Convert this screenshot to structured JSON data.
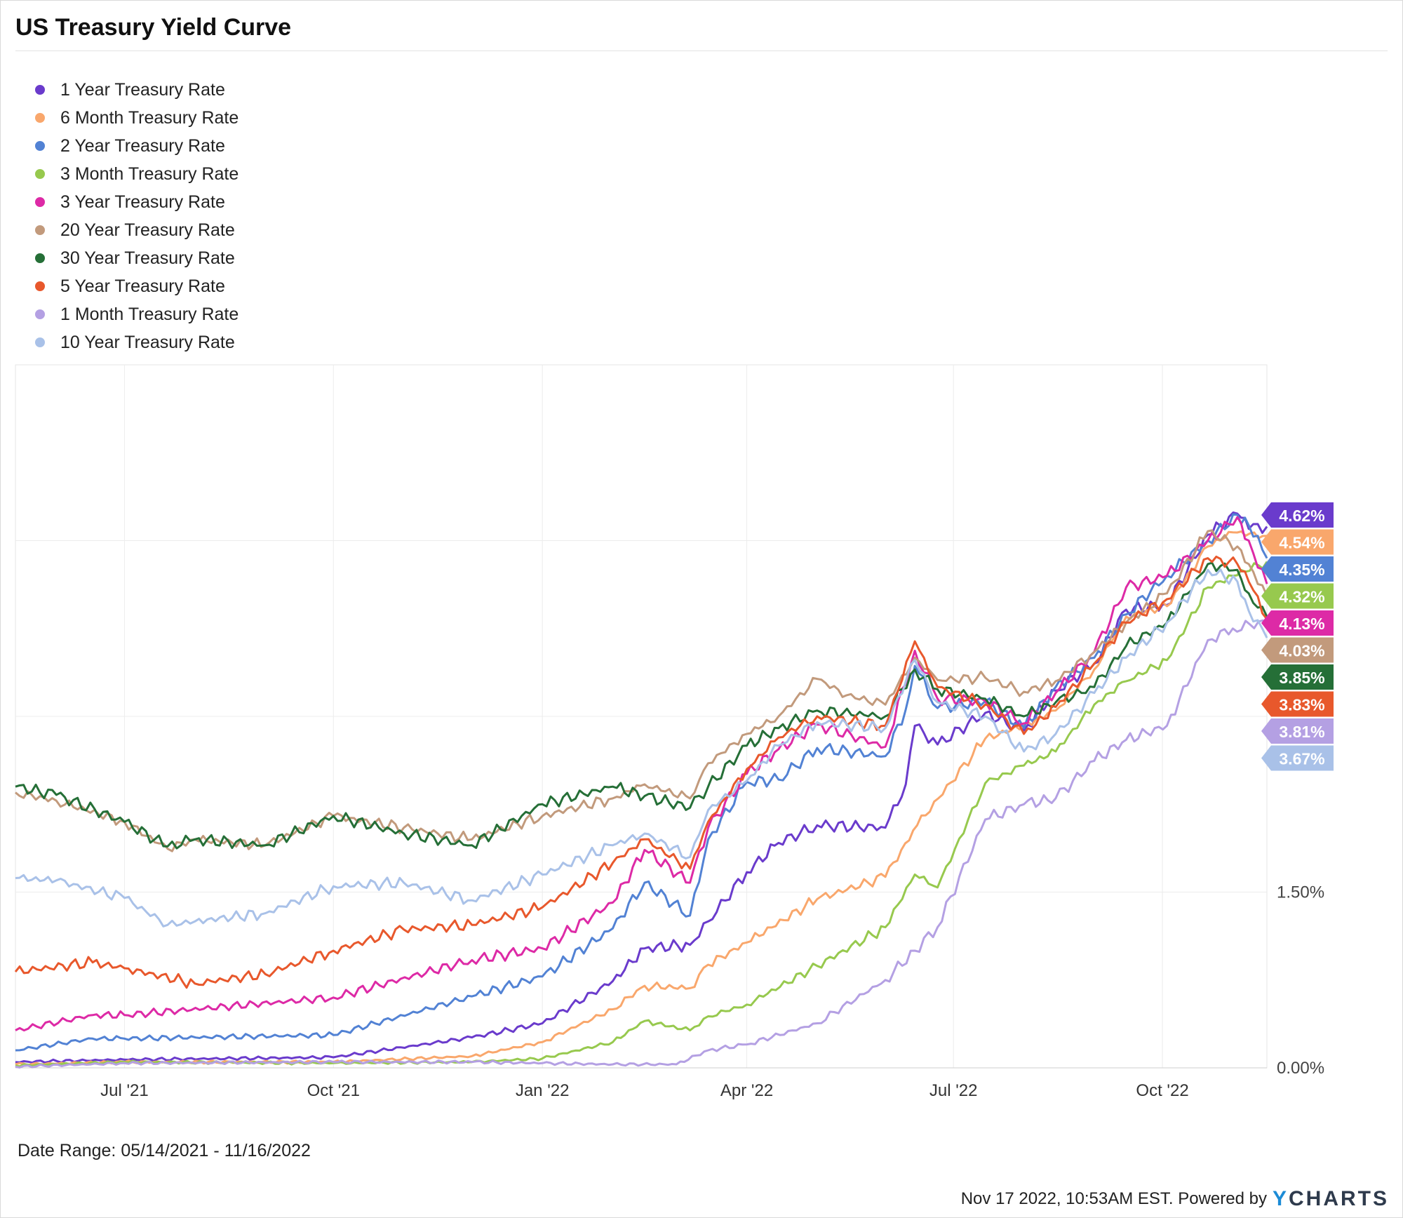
{
  "title": "US Treasury Yield Curve",
  "footer": {
    "date_range": "Date Range: 05/14/2021 - 11/16/2022",
    "stamp": "Nov 17 2022, 10:53AM EST. Powered by",
    "logo_y": "Y",
    "logo_rest": "CHARTS"
  },
  "chart_data": {
    "type": "line",
    "x_tick_labels": [
      "Jul '21",
      "Oct '21",
      "Jan '22",
      "Apr '22",
      "Jul '22",
      "Oct '22"
    ],
    "x_tick_dates": [
      "2021-07-01",
      "2021-10-01",
      "2022-01-01",
      "2022-04-01",
      "2022-07-01",
      "2022-10-01"
    ],
    "xlim": [
      "2021-05-14",
      "2022-11-16"
    ],
    "ylim": [
      0,
      6
    ],
    "y_tick_values": [
      0,
      1.5,
      3,
      4.5
    ],
    "y_tick_labels": [
      "0.00%",
      "1.50%",
      "",
      ""
    ],
    "grid": true,
    "legend_placement": "top-left",
    "series": [
      {
        "name": "1 Year Treasury Rate",
        "color": "#6a3bcc",
        "last_label": "4.62%",
        "x": [
          "2021-05-14",
          "2021-07-01",
          "2021-10-01",
          "2021-12-01",
          "2022-01-01",
          "2022-02-01",
          "2022-02-15",
          "2022-03-07",
          "2022-03-15",
          "2022-04-01",
          "2022-04-15",
          "2022-05-02",
          "2022-06-01",
          "2022-06-10",
          "2022-06-14",
          "2022-06-24",
          "2022-07-15",
          "2022-08-01",
          "2022-08-15",
          "2022-09-01",
          "2022-09-15",
          "2022-10-03",
          "2022-10-21",
          "2022-11-03",
          "2022-11-08",
          "2022-11-16"
        ],
        "values": [
          0.05,
          0.07,
          0.09,
          0.26,
          0.38,
          0.74,
          1.02,
          1.05,
          1.25,
          1.67,
          1.92,
          2.07,
          2.05,
          2.42,
          2.92,
          2.76,
          3.03,
          2.88,
          3.22,
          3.45,
          3.91,
          3.95,
          4.55,
          4.73,
          4.6,
          4.62
        ]
      },
      {
        "name": "6 Month Treasury Rate",
        "color": "#f9a76c",
        "last_label": "4.54%",
        "x": [
          "2021-05-14",
          "2021-07-01",
          "2021-10-01",
          "2021-12-01",
          "2022-01-01",
          "2022-02-01",
          "2022-02-15",
          "2022-03-07",
          "2022-03-15",
          "2022-04-01",
          "2022-05-02",
          "2022-06-01",
          "2022-06-15",
          "2022-07-15",
          "2022-08-01",
          "2022-08-15",
          "2022-09-01",
          "2022-09-15",
          "2022-10-03",
          "2022-10-21",
          "2022-11-01",
          "2022-11-16"
        ],
        "values": [
          0.03,
          0.05,
          0.05,
          0.1,
          0.22,
          0.5,
          0.7,
          0.68,
          0.88,
          1.07,
          1.44,
          1.63,
          2.07,
          2.81,
          2.92,
          3.05,
          3.4,
          3.85,
          3.94,
          4.45,
          4.57,
          4.54
        ]
      },
      {
        "name": "2 Year Treasury Rate",
        "color": "#5282d4",
        "last_label": "4.35%",
        "x": [
          "2021-05-14",
          "2021-06-17",
          "2021-07-01",
          "2021-10-01",
          "2021-12-01",
          "2022-01-01",
          "2022-02-01",
          "2022-02-15",
          "2022-03-07",
          "2022-03-15",
          "2022-04-01",
          "2022-04-15",
          "2022-05-02",
          "2022-06-01",
          "2022-06-10",
          "2022-06-14",
          "2022-06-24",
          "2022-07-15",
          "2022-08-01",
          "2022-08-15",
          "2022-09-01",
          "2022-09-15",
          "2022-10-03",
          "2022-10-21",
          "2022-11-03",
          "2022-11-08",
          "2022-11-16"
        ],
        "values": [
          0.15,
          0.25,
          0.25,
          0.28,
          0.61,
          0.78,
          1.19,
          1.58,
          1.3,
          1.95,
          2.44,
          2.46,
          2.73,
          2.66,
          3.06,
          3.43,
          3.07,
          3.13,
          2.9,
          3.25,
          3.5,
          3.87,
          4.2,
          4.5,
          4.72,
          4.63,
          4.35
        ]
      },
      {
        "name": "3 Month Treasury Rate",
        "color": "#97c94e",
        "last_label": "4.32%",
        "x": [
          "2021-05-14",
          "2021-07-01",
          "2021-10-01",
          "2021-12-01",
          "2022-01-01",
          "2022-02-01",
          "2022-02-15",
          "2022-03-07",
          "2022-03-15",
          "2022-04-01",
          "2022-05-02",
          "2022-06-01",
          "2022-06-14",
          "2022-06-24",
          "2022-07-15",
          "2022-08-01",
          "2022-08-15",
          "2022-09-01",
          "2022-09-15",
          "2022-10-03",
          "2022-10-21",
          "2022-11-01",
          "2022-11-16"
        ],
        "values": [
          0.02,
          0.05,
          0.04,
          0.05,
          0.08,
          0.22,
          0.4,
          0.32,
          0.44,
          0.54,
          0.87,
          1.2,
          1.65,
          1.54,
          2.43,
          2.58,
          2.7,
          3.1,
          3.3,
          3.48,
          4.1,
          4.2,
          4.32
        ]
      },
      {
        "name": "3 Year Treasury Rate",
        "color": "#dd2aa6",
        "last_label": "4.13%",
        "x": [
          "2021-05-14",
          "2021-06-17",
          "2021-07-01",
          "2021-10-01",
          "2021-12-01",
          "2022-01-01",
          "2022-02-01",
          "2022-02-15",
          "2022-03-07",
          "2022-03-15",
          "2022-04-01",
          "2022-04-15",
          "2022-05-02",
          "2022-06-01",
          "2022-06-14",
          "2022-06-24",
          "2022-07-15",
          "2022-08-01",
          "2022-08-15",
          "2022-09-01",
          "2022-09-15",
          "2022-10-03",
          "2022-10-21",
          "2022-11-03",
          "2022-11-08",
          "2022-11-16"
        ],
        "values": [
          0.32,
          0.45,
          0.45,
          0.6,
          0.92,
          1.02,
          1.41,
          1.86,
          1.58,
          2.05,
          2.51,
          2.72,
          2.93,
          2.74,
          3.56,
          3.15,
          3.13,
          2.94,
          3.2,
          3.55,
          4.1,
          4.2,
          4.5,
          4.7,
          4.5,
          4.13
        ]
      },
      {
        "name": "20 Year Treasury Rate",
        "color": "#c29a7c",
        "last_label": "4.03%",
        "x": [
          "2021-05-14",
          "2021-06-01",
          "2021-07-01",
          "2021-07-20",
          "2021-08-01",
          "2021-09-01",
          "2021-10-01",
          "2021-11-01",
          "2021-12-01",
          "2022-01-01",
          "2022-02-01",
          "2022-02-15",
          "2022-03-07",
          "2022-03-15",
          "2022-04-01",
          "2022-04-15",
          "2022-05-02",
          "2022-05-15",
          "2022-06-01",
          "2022-06-14",
          "2022-06-24",
          "2022-07-15",
          "2022-08-01",
          "2022-08-15",
          "2022-09-01",
          "2022-09-15",
          "2022-10-03",
          "2022-10-21",
          "2022-11-03",
          "2022-11-08",
          "2022-11-16"
        ],
        "values": [
          2.35,
          2.28,
          2.1,
          1.87,
          1.95,
          1.9,
          2.15,
          2.05,
          1.95,
          2.15,
          2.3,
          2.42,
          2.3,
          2.6,
          2.85,
          3.0,
          3.32,
          3.18,
          3.1,
          3.5,
          3.31,
          3.33,
          3.21,
          3.3,
          3.55,
          3.8,
          4.05,
          4.58,
          4.45,
          4.3,
          4.03
        ]
      },
      {
        "name": "30 Year Treasury Rate",
        "color": "#256f37",
        "last_label": "3.85%",
        "x": [
          "2021-05-14",
          "2021-06-01",
          "2021-07-01",
          "2021-07-20",
          "2021-08-01",
          "2021-09-01",
          "2021-10-01",
          "2021-11-01",
          "2021-12-01",
          "2022-01-01",
          "2022-02-01",
          "2022-02-15",
          "2022-03-07",
          "2022-03-15",
          "2022-04-01",
          "2022-04-15",
          "2022-05-02",
          "2022-06-01",
          "2022-06-14",
          "2022-06-24",
          "2022-07-15",
          "2022-08-01",
          "2022-08-15",
          "2022-09-01",
          "2022-09-15",
          "2022-10-03",
          "2022-10-21",
          "2022-11-03",
          "2022-11-08",
          "2022-11-16"
        ],
        "values": [
          2.4,
          2.33,
          2.1,
          1.89,
          1.95,
          1.9,
          2.15,
          2.0,
          1.9,
          2.25,
          2.4,
          2.32,
          2.22,
          2.4,
          2.75,
          2.9,
          3.05,
          3.0,
          3.4,
          3.23,
          3.15,
          3.0,
          3.12,
          3.25,
          3.6,
          3.8,
          4.3,
          4.25,
          4.05,
          3.85
        ]
      },
      {
        "name": "5 Year Treasury Rate",
        "color": "#e8582c",
        "last_label": "3.83%",
        "x": [
          "2021-05-14",
          "2021-06-17",
          "2021-07-01",
          "2021-08-01",
          "2021-09-01",
          "2021-10-01",
          "2021-11-01",
          "2021-12-01",
          "2022-01-01",
          "2022-02-01",
          "2022-02-15",
          "2022-03-07",
          "2022-03-15",
          "2022-04-01",
          "2022-04-15",
          "2022-05-02",
          "2022-06-01",
          "2022-06-14",
          "2022-06-24",
          "2022-07-15",
          "2022-08-01",
          "2022-08-15",
          "2022-09-01",
          "2022-09-15",
          "2022-10-03",
          "2022-10-21",
          "2022-11-03",
          "2022-11-08",
          "2022-11-16"
        ],
        "values": [
          0.82,
          0.9,
          0.85,
          0.72,
          0.8,
          1.0,
          1.18,
          1.22,
          1.37,
          1.75,
          1.95,
          1.7,
          2.1,
          2.55,
          2.82,
          3.0,
          2.92,
          3.64,
          3.25,
          3.1,
          2.85,
          3.08,
          3.45,
          3.8,
          4.0,
          4.35,
          4.3,
          4.15,
          3.83
        ]
      },
      {
        "name": "1 Month Treasury Rate",
        "color": "#b4a0e3",
        "last_label": "3.81%",
        "x": [
          "2021-05-14",
          "2021-07-01",
          "2021-10-01",
          "2021-12-01",
          "2022-01-01",
          "2022-02-01",
          "2022-03-01",
          "2022-03-15",
          "2022-04-01",
          "2022-05-02",
          "2022-06-01",
          "2022-06-14",
          "2022-06-24",
          "2022-07-15",
          "2022-08-01",
          "2022-08-15",
          "2022-09-01",
          "2022-09-15",
          "2022-10-03",
          "2022-10-21",
          "2022-11-01",
          "2022-11-16"
        ],
        "values": [
          0.01,
          0.04,
          0.05,
          0.05,
          0.04,
          0.03,
          0.03,
          0.15,
          0.2,
          0.38,
          0.75,
          1.0,
          1.2,
          2.12,
          2.25,
          2.3,
          2.62,
          2.8,
          2.92,
          3.65,
          3.75,
          3.81
        ]
      },
      {
        "name": "10 Year Treasury Rate",
        "color": "#a9c1e8",
        "last_label": "3.67%",
        "x": [
          "2021-05-14",
          "2021-06-01",
          "2021-07-01",
          "2021-07-20",
          "2021-08-01",
          "2021-09-01",
          "2021-10-01",
          "2021-11-01",
          "2021-12-01",
          "2022-01-01",
          "2022-02-01",
          "2022-02-15",
          "2022-03-07",
          "2022-03-15",
          "2022-04-01",
          "2022-04-15",
          "2022-05-02",
          "2022-06-01",
          "2022-06-14",
          "2022-06-24",
          "2022-07-15",
          "2022-08-01",
          "2022-08-15",
          "2022-09-01",
          "2022-09-15",
          "2022-10-03",
          "2022-10-21",
          "2022-11-03",
          "2022-11-08",
          "2022-11-16"
        ],
        "values": [
          1.62,
          1.6,
          1.45,
          1.22,
          1.25,
          1.32,
          1.55,
          1.58,
          1.43,
          1.65,
          1.9,
          2.0,
          1.8,
          2.2,
          2.45,
          2.75,
          2.95,
          2.9,
          3.48,
          3.12,
          3.0,
          2.7,
          2.85,
          3.2,
          3.5,
          3.8,
          4.25,
          4.15,
          3.9,
          3.67
        ]
      }
    ]
  }
}
